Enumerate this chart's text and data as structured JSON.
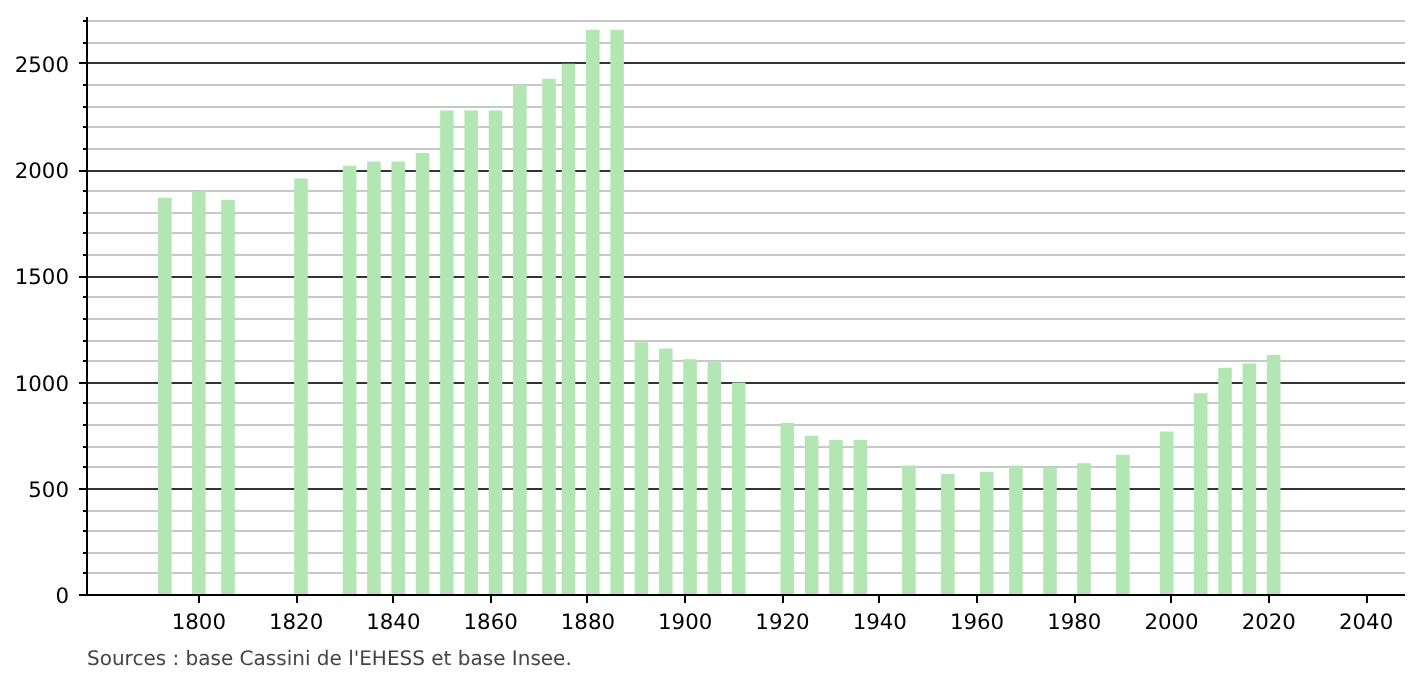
{
  "chart_data": {
    "type": "bar",
    "x": [
      1793,
      1800,
      1806,
      1821,
      1831,
      1836,
      1841,
      1846,
      1851,
      1856,
      1861,
      1866,
      1872,
      1876,
      1881,
      1886,
      1891,
      1896,
      1901,
      1906,
      1911,
      1921,
      1926,
      1931,
      1936,
      1946,
      1954,
      1962,
      1968,
      1975,
      1982,
      1990,
      1999,
      2006,
      2011,
      2016,
      2021
    ],
    "values": [
      1870,
      1900,
      1860,
      1960,
      2020,
      2040,
      2040,
      2080,
      2280,
      2280,
      2280,
      2400,
      2430,
      2500,
      2660,
      2660,
      1190,
      1160,
      1110,
      1100,
      1000,
      810,
      750,
      730,
      730,
      610,
      570,
      580,
      610,
      600,
      620,
      660,
      770,
      950,
      1070,
      1090,
      1130
    ],
    "color": "#b3e6b3",
    "xlim": [
      1777,
      2048
    ],
    "xticks": [
      1800,
      1820,
      1840,
      1860,
      1880,
      1900,
      1920,
      1940,
      1960,
      1980,
      2000,
      2020,
      2040
    ],
    "ylim": [
      0,
      2720
    ],
    "yticks": [
      0,
      {
        "value": 100,
        "label": null
      },
      {
        "value": 200,
        "label": null
      },
      {
        "value": 300,
        "label": null
      },
      {
        "value": 400,
        "label": null
      },
      500,
      {
        "value": 600,
        "label": null
      },
      {
        "value": 700,
        "label": null
      },
      {
        "value": 800,
        "label": null
      },
      {
        "value": 900,
        "label": null
      },
      1000,
      {
        "value": 1100,
        "label": null
      },
      {
        "value": 1200,
        "label": null
      },
      {
        "value": 1300,
        "label": null
      },
      {
        "value": 1400,
        "label": null
      },
      1500,
      {
        "value": 1600,
        "label": null
      },
      {
        "value": 1700,
        "label": null
      },
      {
        "value": 1800,
        "label": null
      },
      {
        "value": 1900,
        "label": null
      },
      2000,
      {
        "value": 2100,
        "label": null
      },
      {
        "value": 2200,
        "label": null
      },
      {
        "value": 2300,
        "label": null
      },
      {
        "value": 2400,
        "label": null
      },
      2500,
      {
        "value": 2600,
        "label": null
      },
      {
        "value": 2700,
        "label": null
      }
    ],
    "grid": "y",
    "annotations": [
      "Sources : base Cassini de l'EHESS et base Insee."
    ]
  }
}
